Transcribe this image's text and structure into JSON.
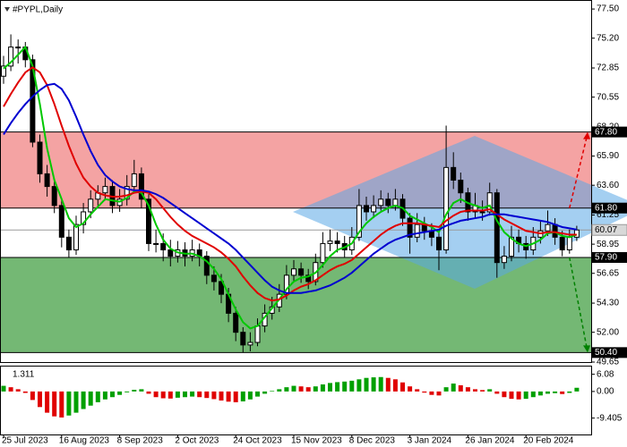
{
  "chart_data": [
    {
      "type": "candlestick",
      "title": "#PYPL,Daily",
      "categories": [
        "25 Jul 2023",
        null,
        null,
        null,
        null,
        null,
        null,
        null,
        "16 Aug 2023",
        null,
        null,
        null,
        null,
        null,
        null,
        null,
        "8 Sep 2023",
        null,
        null,
        null,
        null,
        null,
        null,
        null,
        "2 Oct 2023",
        null,
        null,
        null,
        null,
        null,
        null,
        null,
        "24 Oct 2023",
        null,
        null,
        null,
        null,
        null,
        null,
        null,
        "15 Nov 2023",
        null,
        null,
        null,
        null,
        null,
        null,
        null,
        "8 Dec 2023",
        null,
        null,
        null,
        null,
        null,
        null,
        null,
        "3 Jan 2024",
        null,
        null,
        null,
        null,
        null,
        null,
        null,
        "26 Jan 2024",
        null,
        null,
        null,
        null,
        null,
        null,
        null,
        "20 Feb 2024",
        null,
        null,
        null,
        null,
        null,
        null,
        null
      ],
      "ohlc": [
        [
          72.2,
          73.8,
          71.6,
          73
        ],
        [
          73,
          75.5,
          72.6,
          74.5
        ],
        [
          74.5,
          75.1,
          73.2,
          74.5
        ],
        [
          74.5,
          74.9,
          72.9,
          73.5
        ],
        [
          73.5,
          73.9,
          66.6,
          67
        ],
        [
          67,
          67.6,
          63.8,
          64.5
        ],
        [
          64.5,
          65.2,
          62.7,
          63.5
        ],
        [
          63.5,
          64.1,
          61.4,
          62
        ],
        [
          62,
          62.4,
          58.7,
          59.5
        ],
        [
          59.5,
          60.1,
          57.9,
          58.5
        ],
        [
          58.5,
          61.2,
          58.1,
          60.5
        ],
        [
          60.5,
          62.2,
          59.8,
          61.5
        ],
        [
          61.5,
          63.2,
          61,
          62.5
        ],
        [
          62.5,
          63.6,
          61.9,
          63
        ],
        [
          63,
          64.2,
          62.4,
          63.5
        ],
        [
          63.5,
          64,
          61.4,
          62
        ],
        [
          62,
          63.3,
          61.5,
          62.5
        ],
        [
          62.5,
          64.4,
          62,
          63.5
        ],
        [
          63.5,
          65.6,
          63,
          64.5
        ],
        [
          64.5,
          65,
          61.8,
          62.5
        ],
        [
          62.5,
          62.9,
          58.4,
          59
        ],
        [
          59,
          60.1,
          58.3,
          59
        ],
        [
          59,
          59.8,
          57.6,
          58.5
        ],
        [
          58.5,
          59.3,
          57.2,
          58
        ],
        [
          58,
          59.2,
          57.5,
          58.5
        ],
        [
          58.5,
          59.1,
          57.2,
          58
        ],
        [
          58,
          59.3,
          57.6,
          58.5
        ],
        [
          58.5,
          59,
          57.2,
          58
        ],
        [
          58,
          58.4,
          55.8,
          56.5
        ],
        [
          56.5,
          57.2,
          55.3,
          56
        ],
        [
          56,
          56.6,
          54.3,
          55
        ],
        [
          55,
          55.5,
          52.8,
          53.5
        ],
        [
          53.5,
          54,
          51.3,
          52
        ],
        [
          52,
          52.4,
          50.4,
          51
        ],
        [
          51,
          52,
          50.5,
          51.2
        ],
        [
          51.2,
          53.1,
          50.9,
          52.5
        ],
        [
          52.5,
          54.2,
          52,
          53.5
        ],
        [
          53.5,
          54.8,
          53,
          54
        ],
        [
          54,
          55.8,
          53.6,
          55
        ],
        [
          55,
          57.3,
          54.6,
          56.5
        ],
        [
          56.5,
          57.7,
          56,
          57
        ],
        [
          57,
          57.5,
          55.9,
          56.5
        ],
        [
          56.5,
          57,
          55.4,
          56
        ],
        [
          56,
          58.2,
          55.7,
          57.5
        ],
        [
          57.5,
          59.9,
          57.1,
          59
        ],
        [
          59,
          60.1,
          58.4,
          59.2
        ],
        [
          59.2,
          59.9,
          58.3,
          59
        ],
        [
          59,
          59.6,
          57.9,
          58.5
        ],
        [
          58.5,
          60.3,
          58.1,
          59.5
        ],
        [
          59.5,
          63.3,
          59.2,
          62
        ],
        [
          62,
          62.7,
          60.8,
          61.5
        ],
        [
          61.5,
          62.8,
          61,
          62
        ],
        [
          62,
          63.2,
          61.6,
          62.5
        ],
        [
          62.5,
          63,
          61.4,
          62
        ],
        [
          62,
          63.3,
          61.6,
          62.5
        ],
        [
          62.5,
          62.9,
          60.4,
          61
        ],
        [
          61,
          61.4,
          58.2,
          59.5
        ],
        [
          59.5,
          61.4,
          59.1,
          60.5
        ],
        [
          60.5,
          61.1,
          59.3,
          60
        ],
        [
          60,
          60.6,
          58.8,
          59.5
        ],
        [
          59.5,
          60,
          56.9,
          58.5
        ],
        [
          58.5,
          68.3,
          58.2,
          65
        ],
        [
          65,
          66.2,
          63.3,
          64
        ],
        [
          64,
          64.6,
          62.2,
          63
        ],
        [
          63,
          63.4,
          60.8,
          61.5
        ],
        [
          61.5,
          63,
          61,
          62
        ],
        [
          61.5,
          62.4,
          60.8,
          61.5
        ],
        [
          61.5,
          63.8,
          61.2,
          63
        ],
        [
          63,
          63.3,
          56.3,
          57.5
        ],
        [
          57.5,
          58.8,
          57,
          58
        ],
        [
          58,
          60.4,
          57.6,
          59.5
        ],
        [
          59.5,
          60.1,
          58.3,
          59
        ],
        [
          59,
          59.6,
          57.8,
          58.5
        ],
        [
          58.5,
          60.3,
          58.1,
          59.5
        ],
        [
          59.5,
          60.8,
          59,
          60
        ],
        [
          60,
          61.6,
          59.6,
          60.5
        ],
        [
          60.5,
          61,
          58.9,
          59.5
        ],
        [
          59.5,
          60,
          58,
          58.5
        ],
        [
          58.5,
          60.1,
          58.2,
          59.5
        ],
        [
          59.5,
          60.4,
          59.2,
          60.07
        ]
      ],
      "candle_color": "#000000",
      "series": [
        {
          "color": "#00c800",
          "values": [
            72.8,
            73.3,
            73.9,
            74.5,
            73.0,
            70.0,
            66.5,
            64.0,
            62.5,
            61.0,
            60.3,
            60.6,
            61.3,
            61.9,
            62.5,
            62.4,
            62.3,
            62.6,
            63.1,
            63.0,
            62.0,
            60.5,
            59.3,
            58.6,
            58.3,
            58.2,
            58.2,
            58.0,
            57.6,
            57.0,
            56.2,
            55.0,
            53.8,
            52.8,
            52.3,
            52.5,
            53.2,
            53.9,
            54.6,
            55.4,
            56.0,
            56.3,
            56.4,
            56.7,
            57.3,
            58.0,
            58.5,
            58.7,
            59.0,
            59.9,
            60.6,
            61.1,
            61.5,
            61.8,
            62.0,
            61.8,
            61.2,
            60.9,
            60.6,
            60.3,
            59.9,
            61.3,
            62.2,
            62.5,
            62.2,
            62.0,
            61.8,
            62.0,
            60.8,
            59.9,
            59.4,
            59.0,
            58.8,
            59.0,
            59.3,
            59.8,
            59.9,
            59.6,
            59.5,
            59.7
          ]
        },
        {
          "color": "#e00000",
          "values": [
            69.8,
            70.8,
            71.7,
            72.5,
            72.9,
            72.5,
            71.5,
            70.0,
            68.3,
            66.7,
            65.3,
            64.2,
            63.5,
            63.0,
            62.8,
            62.7,
            62.7,
            62.8,
            63.0,
            63.1,
            63.0,
            62.5,
            61.8,
            61.1,
            60.5,
            60.0,
            59.6,
            59.3,
            59.0,
            58.7,
            58.3,
            57.8,
            57.2,
            56.4,
            55.7,
            55.1,
            54.7,
            54.5,
            54.6,
            54.9,
            55.3,
            55.6,
            55.8,
            56.1,
            56.5,
            56.9,
            57.2,
            57.4,
            57.7,
            58.2,
            58.7,
            59.2,
            59.7,
            60.1,
            60.4,
            60.6,
            60.6,
            60.6,
            60.5,
            60.4,
            60.3,
            60.8,
            61.2,
            61.5,
            61.6,
            61.6,
            61.6,
            61.7,
            61.3,
            60.9,
            60.6,
            60.3,
            60.0,
            59.9,
            59.8,
            59.9,
            59.9,
            59.8,
            59.7,
            59.7
          ]
        },
        {
          "color": "#0000d0",
          "values": [
            67.6,
            68.5,
            69.3,
            70.0,
            70.6,
            71.1,
            71.5,
            71.6,
            71.2,
            70.3,
            69.0,
            67.6,
            66.3,
            65.2,
            64.4,
            63.9,
            63.5,
            63.3,
            63.2,
            63.2,
            63.1,
            62.9,
            62.6,
            62.2,
            61.8,
            61.4,
            61.0,
            60.6,
            60.2,
            59.8,
            59.4,
            59.0,
            58.5,
            57.9,
            57.3,
            56.7,
            56.1,
            55.6,
            55.3,
            55.1,
            55.1,
            55.1,
            55.2,
            55.3,
            55.5,
            55.7,
            56.0,
            56.3,
            56.7,
            57.2,
            57.7,
            58.2,
            58.6,
            59.0,
            59.3,
            59.5,
            59.7,
            59.8,
            59.9,
            60.0,
            60.1,
            60.4,
            60.6,
            60.8,
            60.9,
            61.0,
            61.1,
            61.3,
            61.3,
            61.3,
            61.2,
            61.1,
            61.0,
            60.9,
            60.8,
            60.7,
            60.5,
            60.3,
            60.2,
            60.1
          ]
        }
      ],
      "ylim": [
        49.65,
        78.0
      ],
      "yticks": [
        {
          "value": 77.5,
          "label": "77.50"
        },
        {
          "value": 75.2,
          "label": "75.20"
        },
        72.85,
        70.55,
        {
          "value": 68.2,
          "label": "68.20"
        },
        {
          "value": 65.9,
          "label": "65.90"
        },
        {
          "value": 63.6,
          "label": "63.60"
        },
        61.25,
        58.95,
        56.65,
        {
          "value": 54.3,
          "label": "54.30"
        },
        {
          "value": 52,
          "label": "52.00"
        },
        49.65
      ],
      "levels": [
        {
          "value": 67.8,
          "label": "67.80"
        },
        {
          "value": 61.8,
          "label": "61.80"
        },
        {
          "value": 57.9,
          "label": "57.90"
        },
        {
          "value": 50.4,
          "label": "50.40"
        }
      ],
      "level_color": "#000000",
      "zone_colors": [
        "#f4a3a3",
        "#74b874"
      ],
      "arrow_colors": [
        "#e00000",
        "#008000"
      ],
      "last_price": 60.07
    },
    {
      "type": "bar",
      "label": "1.311",
      "values": [
        2,
        1.5,
        0.8,
        -0.5,
        -3,
        -5.5,
        -7.5,
        -8.8,
        -9.2,
        -8.5,
        -7.5,
        -6.2,
        -5,
        -3.8,
        -2.8,
        -2,
        -1.2,
        -0.3,
        0.6,
        0.8,
        -0.8,
        -2,
        -2.4,
        -2.5,
        -2.2,
        -2,
        -1.8,
        -2,
        -2.3,
        -2.7,
        -3.2,
        -3.6,
        -3.8,
        -3.5,
        -2.8,
        -1.8,
        -0.8,
        0.2,
        0.8,
        1.5,
        2,
        1.8,
        1.5,
        1.8,
        2.5,
        3,
        3.3,
        3.5,
        3.8,
        4.3,
        4.8,
        5,
        5.1,
        4.8,
        4.3,
        3.2,
        1.8,
        0.8,
        -0.4,
        -1.2,
        -1.4,
        1.5,
        2.8,
        2.2,
        1.5,
        0.8,
        0.5,
        0.8,
        -0.8,
        -2,
        -2.6,
        -2.8,
        -2.6,
        -2,
        -1.4,
        -0.8,
        -0.6,
        -0.9,
        -0.5,
        1.311
      ],
      "up_color": "#00a000",
      "down_color": "#e00000",
      "ylim": [
        -15.2,
        8.5
      ],
      "yticks": [
        6.08,
        {
          "value": 0,
          "label": "0.00"
        },
        -9.405
      ]
    }
  ]
}
